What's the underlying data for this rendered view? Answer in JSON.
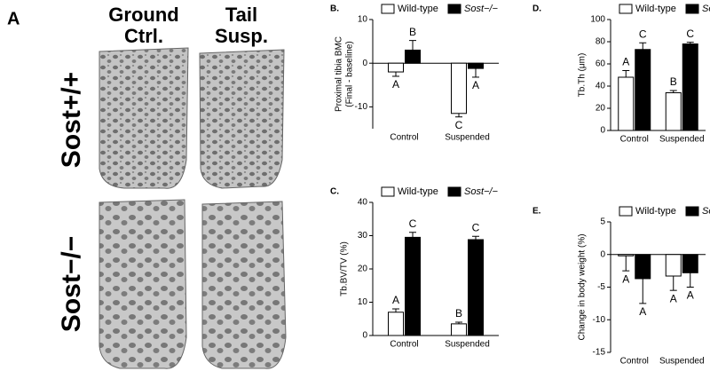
{
  "panel_a": {
    "label": "A",
    "column_labels": [
      [
        "Ground",
        "Ctrl."
      ],
      [
        "Tail",
        "Susp."
      ]
    ],
    "row_labels": [
      "Sost+/+",
      "Sost−/−"
    ]
  },
  "chart_data": [
    {
      "type": "bar",
      "panel": "B.",
      "ylabel": [
        "Proximal tibia BMC",
        "(Final - baseline)"
      ],
      "categories": [
        "Control",
        "Suspended"
      ],
      "ylim": [
        -15,
        10
      ],
      "yticks": [
        -10,
        0,
        10
      ],
      "series": [
        {
          "name": "Wild-type",
          "color": "#ffffff",
          "values": [
            -2,
            -11.5
          ],
          "errors": [
            1,
            0.8
          ],
          "annotations": [
            "A",
            "C"
          ]
        },
        {
          "name": "Sost−/−",
          "color": "#000000",
          "values": [
            3,
            -1.2
          ],
          "errors": [
            2.2,
            2
          ],
          "annotations": [
            "B",
            "A"
          ]
        }
      ]
    },
    {
      "type": "bar",
      "panel": "D.",
      "ylabel": [
        "Tb.Th (μm)"
      ],
      "categories": [
        "Control",
        "Suspended"
      ],
      "ylim": [
        0,
        100
      ],
      "yticks": [
        0,
        20,
        40,
        60,
        80,
        100
      ],
      "series": [
        {
          "name": "Wild-type",
          "color": "#ffffff",
          "values": [
            48,
            34
          ],
          "errors": [
            6,
            2
          ],
          "annotations": [
            "A",
            "B"
          ]
        },
        {
          "name": "Sost−/−",
          "color": "#000000",
          "values": [
            73,
            78
          ],
          "errors": [
            6,
            1.5
          ],
          "annotations": [
            "C",
            "C"
          ]
        }
      ]
    },
    {
      "type": "bar",
      "panel": "C.",
      "ylabel": [
        "Tb.BV/TV (%)"
      ],
      "categories": [
        "Control",
        "Suspended"
      ],
      "ylim": [
        0,
        40
      ],
      "yticks": [
        0,
        10,
        20,
        30,
        40
      ],
      "series": [
        {
          "name": "Wild-type",
          "color": "#ffffff",
          "values": [
            7,
            3.5
          ],
          "errors": [
            1,
            0.5
          ],
          "annotations": [
            "A",
            "B"
          ]
        },
        {
          "name": "Sost−/−",
          "color": "#000000",
          "values": [
            29.5,
            28.8
          ],
          "errors": [
            1.5,
            1
          ],
          "annotations": [
            "C",
            "C"
          ]
        }
      ]
    },
    {
      "type": "bar",
      "panel": "E.",
      "ylabel": [
        "Change in body weight (%)"
      ],
      "categories": [
        "Control",
        "Suspended"
      ],
      "ylim": [
        -15,
        5
      ],
      "yticks": [
        -15,
        -10,
        -5,
        0,
        5
      ],
      "series": [
        {
          "name": "Wild-type",
          "color": "#ffffff",
          "values": [
            -0.2,
            -3.3
          ],
          "errors": [
            2.3,
            2.2
          ],
          "annotations": [
            "A",
            "A"
          ]
        },
        {
          "name": "Sost−/−",
          "color": "#000000",
          "values": [
            -3.7,
            -2.8
          ],
          "errors": [
            3.8,
            2.2
          ],
          "annotations": [
            "A",
            "A"
          ]
        }
      ]
    }
  ]
}
